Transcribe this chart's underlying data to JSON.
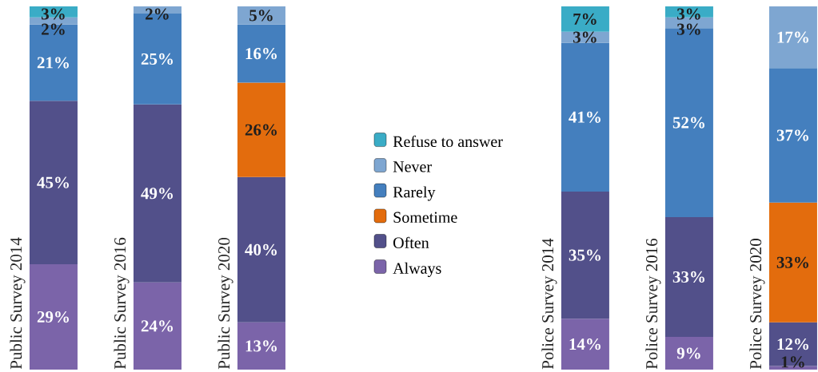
{
  "chart_data": {
    "type": "bar",
    "stacked": true,
    "legend": "center",
    "ylim": [
      0,
      100
    ],
    "categories": [
      "Public Survey 2014",
      "Public Survey 2016",
      "Public Survey 2020",
      "Police Survey 2014",
      "Police Survey 2016",
      "Police Survey 2020"
    ],
    "series": [
      {
        "name": "Always",
        "color": "#7b64a9",
        "values": [
          29,
          24,
          13,
          14,
          9,
          1
        ],
        "value_labels": [
          "29%",
          "24%",
          "13%",
          "14%",
          "9%",
          "1%"
        ]
      },
      {
        "name": "Often",
        "color": "#52508a",
        "values": [
          45,
          49,
          40,
          35,
          33,
          12
        ],
        "value_labels": [
          "45%",
          "49%",
          "40%",
          "35%",
          "33%",
          "12%"
        ]
      },
      {
        "name": "Sometime",
        "color": "#e36c0d",
        "values": [
          null,
          null,
          26,
          null,
          null,
          33
        ],
        "value_labels": [
          null,
          null,
          "26%",
          null,
          null,
          "33%"
        ]
      },
      {
        "name": "Rarely",
        "color": "#447fbe",
        "values": [
          21,
          25,
          16,
          41,
          52,
          37
        ],
        "value_labels": [
          "21%",
          "25%",
          "16%",
          "41%",
          "52%",
          "37%"
        ]
      },
      {
        "name": "Never",
        "color": "#7ea6d1",
        "values": [
          2,
          2,
          5,
          3,
          3,
          17
        ],
        "value_labels": [
          "2%",
          "2%",
          "5%",
          "3%",
          "3%",
          "17%"
        ]
      },
      {
        "name": "Refuse to answer",
        "color": "#3aacc6",
        "values": [
          3,
          null,
          null,
          7,
          3,
          null
        ],
        "value_labels": [
          "3%",
          null,
          null,
          "7%",
          "3%",
          null
        ]
      }
    ]
  }
}
